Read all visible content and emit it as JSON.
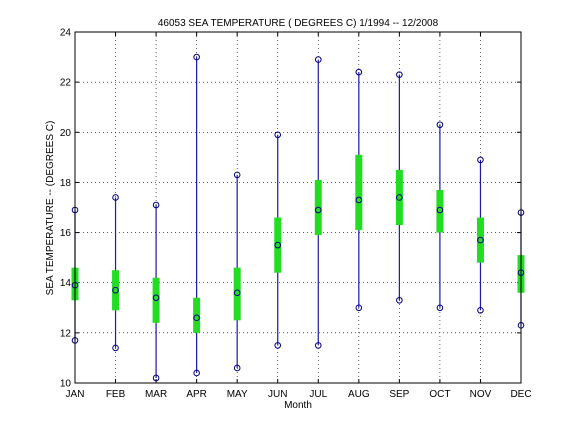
{
  "chart_data": {
    "type": "boxplot",
    "title": "46053  SEA TEMPERATURE ( DEGREES C) 1/1994 -- 12/2008",
    "xlabel": "Month",
    "ylabel": "SEA TEMPERATURE -- (DEGREES C)",
    "categories": [
      "JAN",
      "FEB",
      "MAR",
      "APR",
      "MAY",
      "JUN",
      "JUL",
      "AUG",
      "SEP",
      "OCT",
      "NOV",
      "DEC"
    ],
    "ylim": [
      10,
      24
    ],
    "yticks": [
      "10",
      "12",
      "14",
      "16",
      "18",
      "20",
      "22",
      "24"
    ],
    "grid": true,
    "min": [
      11.7,
      11.4,
      10.2,
      10.4,
      10.6,
      11.5,
      11.5,
      13.0,
      13.3,
      13.0,
      12.9,
      12.3
    ],
    "q1": [
      13.3,
      12.9,
      12.4,
      12.0,
      12.5,
      14.4,
      15.9,
      16.1,
      16.3,
      16.0,
      14.8,
      13.6
    ],
    "median": [
      13.9,
      13.7,
      13.4,
      12.6,
      13.6,
      15.5,
      16.9,
      17.3,
      17.4,
      16.9,
      15.7,
      14.4
    ],
    "q3": [
      14.6,
      14.5,
      14.2,
      13.4,
      14.6,
      16.6,
      18.1,
      19.1,
      18.5,
      17.7,
      16.6,
      15.1
    ],
    "max": [
      16.9,
      17.4,
      17.1,
      23.0,
      18.3,
      19.9,
      22.9,
      22.4,
      22.3,
      20.3,
      18.9,
      16.8
    ],
    "colors": {
      "whisker": "#1a1aa6",
      "box": "#22dd22",
      "marker": "#000080",
      "grid": "#000000"
    }
  }
}
